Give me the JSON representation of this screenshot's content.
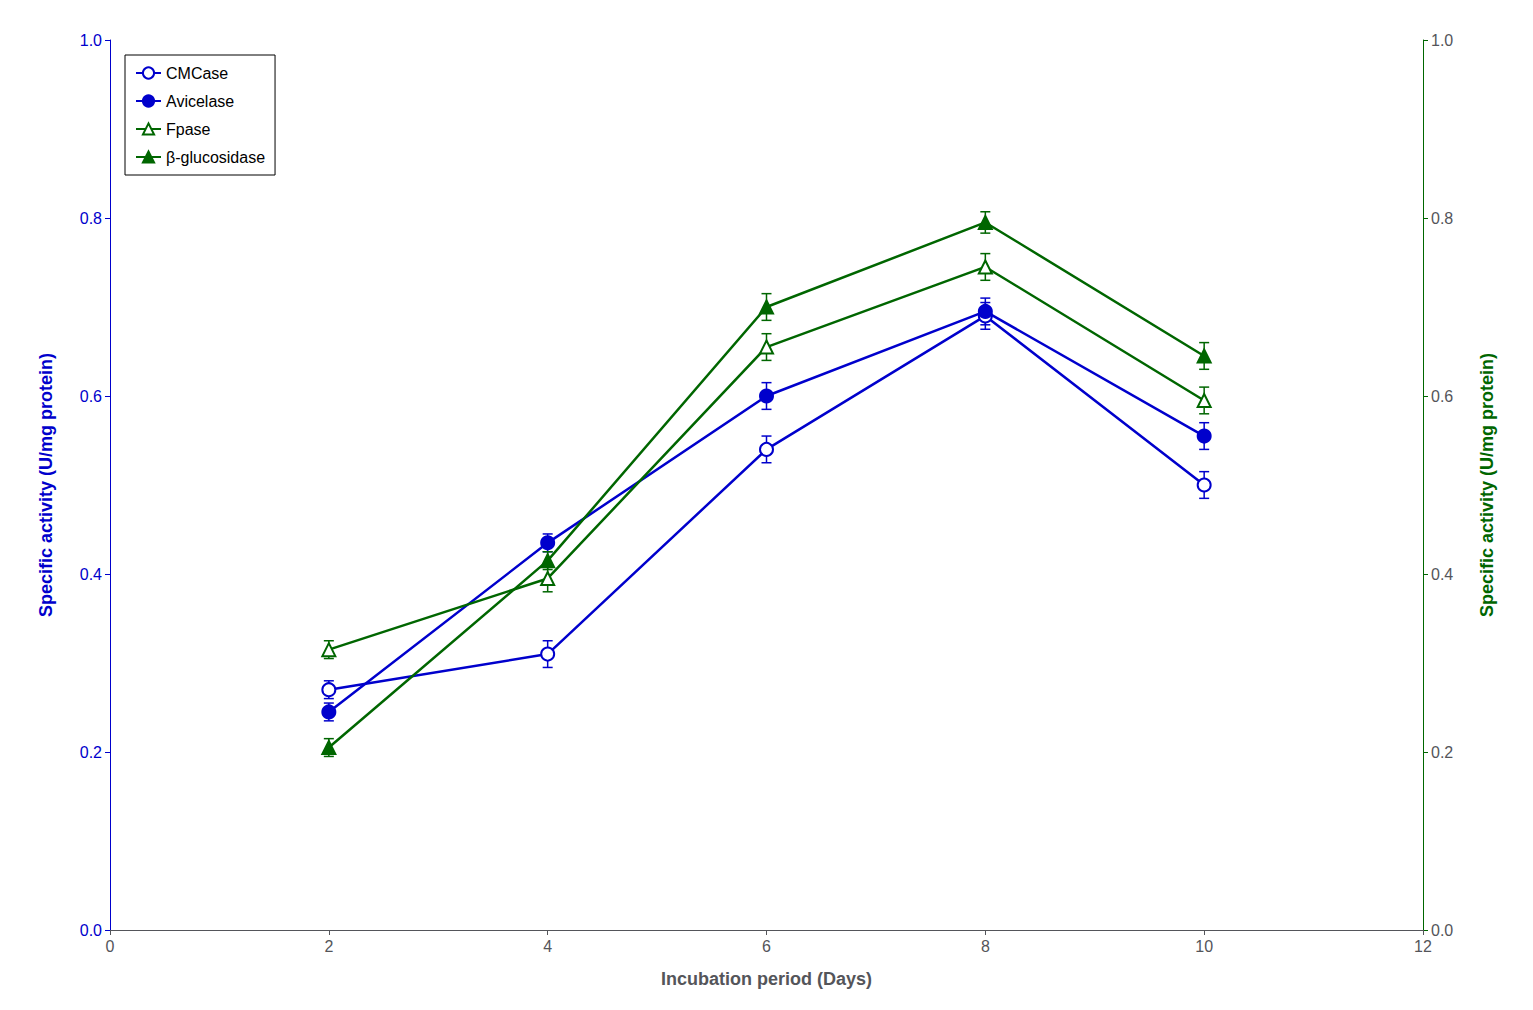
{
  "chart_data": {
    "type": "line",
    "x": [
      2,
      4,
      6,
      8,
      10
    ],
    "xlabel": "Incubation period (Days)",
    "ylabel": "Specific activity (U/mg protein)",
    "y2label": "Specific activity (U/mg protein)",
    "xlim": [
      0,
      12
    ],
    "xticks": [
      0,
      2,
      4,
      6,
      8,
      10,
      12
    ],
    "ylim": [
      0,
      1.0
    ],
    "yticks": [
      {
        "value": 0,
        "label": "0.0"
      },
      0.2,
      0.4,
      0.6,
      0.8,
      {
        "value": 1.0,
        "label": "1.0"
      }
    ],
    "y2lim": [
      0,
      1.0
    ],
    "y2ticks": [
      {
        "value": 0,
        "label": "0.0"
      },
      0.2,
      0.4,
      0.6,
      0.8,
      {
        "value": 1.0,
        "label": "1.0"
      }
    ],
    "grid": false,
    "legend": "upper left",
    "series": [
      {
        "name": "CMCase",
        "color": "#0000CC",
        "marker": "open circle",
        "values": [
          0.27,
          0.31,
          0.54,
          0.69,
          0.5
        ],
        "errors": [
          0.01,
          0.015,
          0.015,
          0.015,
          0.015
        ]
      },
      {
        "name": "Avicelase",
        "color": "#0000CC",
        "marker": "circle",
        "values": [
          0.245,
          0.435,
          0.6,
          0.695,
          0.555
        ],
        "errors": [
          0.01,
          0.01,
          0.015,
          0.015,
          0.015
        ]
      },
      {
        "name": "Fpase",
        "color": "#006600",
        "marker": "open triangle",
        "axis": "y2",
        "values": [
          0.315,
          0.395,
          0.655,
          0.745,
          0.595
        ],
        "errors": [
          0.01,
          0.015,
          0.015,
          0.015,
          0.015
        ]
      },
      {
        "name": "β-glucosidase",
        "color": "#006600",
        "marker": "triangle",
        "axis": "y2",
        "values": [
          0.205,
          0.415,
          0.7,
          0.795,
          0.645
        ],
        "errors": [
          0.01,
          0.01,
          0.015,
          0.012,
          0.015
        ]
      }
    ]
  }
}
